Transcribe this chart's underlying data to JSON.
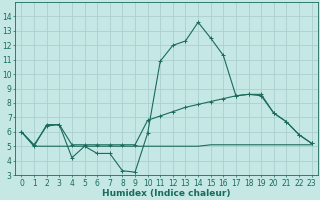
{
  "xlabel": "Humidex (Indice chaleur)",
  "background_color": "#c5e8e5",
  "grid_color": "#aad0cc",
  "line_color": "#1a6b5a",
  "xlim": [
    -0.5,
    23.5
  ],
  "ylim": [
    3,
    15
  ],
  "xticks": [
    0,
    1,
    2,
    3,
    4,
    5,
    6,
    7,
    8,
    9,
    10,
    11,
    12,
    13,
    14,
    15,
    16,
    17,
    18,
    19,
    20,
    21,
    22,
    23
  ],
  "yticks": [
    3,
    4,
    5,
    6,
    7,
    8,
    9,
    10,
    11,
    12,
    13,
    14
  ],
  "line1_x": [
    0,
    1,
    2,
    3,
    4,
    5,
    6,
    7,
    8,
    9,
    10,
    11,
    12,
    13,
    14,
    15,
    16,
    17,
    18,
    19,
    20,
    21,
    22,
    23
  ],
  "line1_y": [
    6.0,
    5.0,
    6.5,
    6.5,
    4.2,
    5.0,
    4.5,
    4.5,
    3.3,
    3.2,
    5.9,
    10.9,
    12.0,
    12.3,
    13.6,
    12.5,
    11.3,
    8.5,
    8.6,
    8.5,
    7.3,
    6.7,
    5.8,
    5.2
  ],
  "line2_x": [
    0,
    1,
    2,
    3,
    4,
    5,
    6,
    7,
    8,
    9,
    10,
    11,
    12,
    13,
    14,
    15,
    16,
    17,
    18,
    19,
    20,
    21,
    22,
    23
  ],
  "line2_y": [
    6.0,
    5.1,
    6.4,
    6.5,
    5.1,
    5.1,
    5.1,
    5.1,
    5.1,
    5.1,
    6.8,
    7.1,
    7.4,
    7.7,
    7.9,
    8.1,
    8.3,
    8.5,
    8.6,
    8.6,
    7.3,
    6.7,
    5.8,
    5.2
  ],
  "line3_x": [
    0,
    1,
    2,
    3,
    4,
    5,
    6,
    7,
    8,
    9,
    10,
    11,
    12,
    13,
    14,
    15,
    16,
    17,
    18,
    19,
    20,
    21,
    22,
    23
  ],
  "line3_y": [
    6.0,
    5.0,
    5.0,
    5.0,
    5.0,
    5.0,
    5.0,
    5.0,
    5.0,
    5.0,
    5.0,
    5.0,
    5.0,
    5.0,
    5.0,
    5.1,
    5.1,
    5.1,
    5.1,
    5.1,
    5.1,
    5.1,
    5.1,
    5.1
  ],
  "tick_fontsize": 5.5,
  "xlabel_fontsize": 6.5
}
